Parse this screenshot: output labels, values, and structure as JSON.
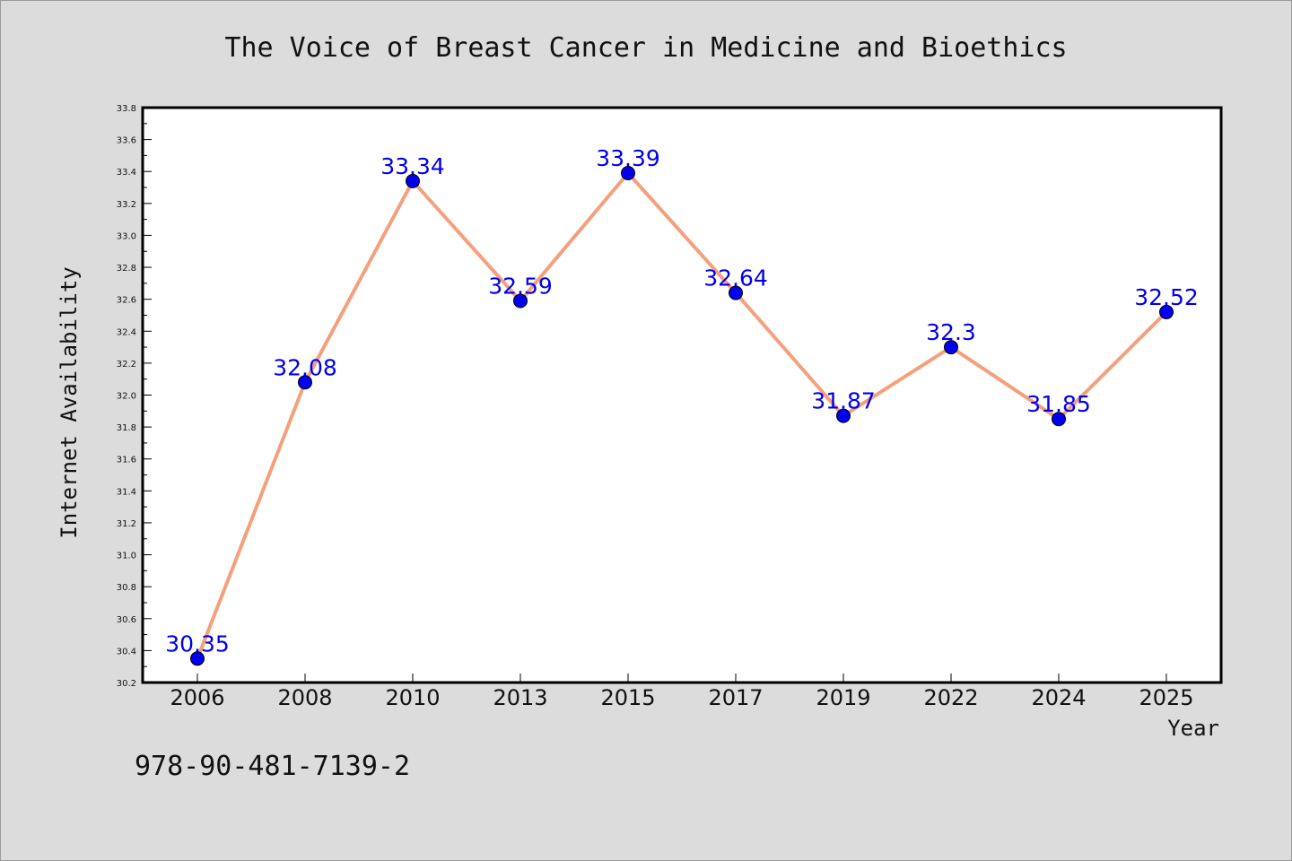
{
  "chart_data": {
    "type": "line",
    "title": "The Voice of Breast Cancer in Medicine and Bioethics",
    "xlabel": "Year",
    "ylabel": "Internet Availability",
    "categories": [
      "2006",
      "2008",
      "2010",
      "2013",
      "2015",
      "2017",
      "2019",
      "2022",
      "2024",
      "2025"
    ],
    "series": [
      {
        "values": [
          30.35,
          32.08,
          33.34,
          32.59,
          33.39,
          32.64,
          31.87,
          32.3,
          31.85,
          32.52
        ],
        "data_labels": [
          "30.35",
          "32.08",
          "33.34",
          "32.59",
          "33.39",
          "32.64",
          "31.87",
          "32.3",
          "31.85",
          "32.52"
        ],
        "line_color": "#f4a07c",
        "marker_color": "#0000ee"
      }
    ],
    "ylim": [
      30.2,
      33.8
    ],
    "yticks": [
      "30.2",
      "30.4",
      "30.6",
      "30.8",
      "31.0",
      "31.2",
      "31.4",
      "31.6",
      "31.8",
      "32.0",
      "32.2",
      "32.4",
      "32.6",
      "32.8",
      "33.0",
      "33.2",
      "33.4",
      "33.6",
      "33.8"
    ],
    "grid": false,
    "label_color": "#0000ee"
  },
  "footer": {
    "isbn": "978-90-481-7139-2"
  }
}
